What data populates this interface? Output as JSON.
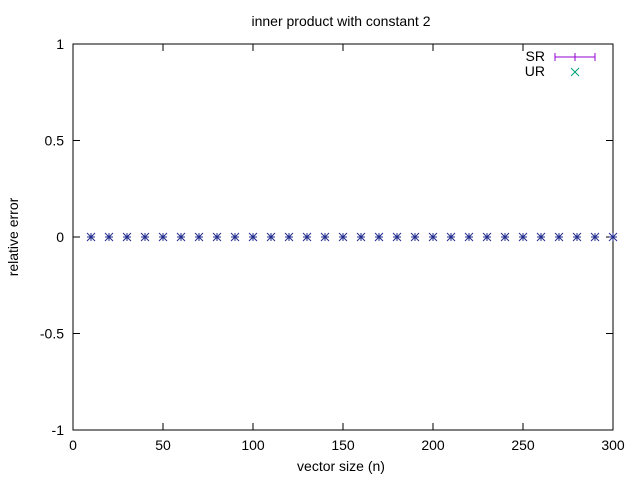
{
  "chart_data": {
    "type": "scatter",
    "title": "inner product with constant 2",
    "xlabel": "vector size (n)",
    "ylabel": "relative error",
    "xlim": [
      0,
      300
    ],
    "ylim": [
      -1,
      1
    ],
    "xticks": [
      0,
      50,
      100,
      150,
      200,
      250,
      300
    ],
    "yticks": [
      -1,
      -0.5,
      0,
      0.5,
      1
    ],
    "xtick_labels": [
      "0",
      "50",
      "100",
      "150",
      "200",
      "250",
      "300"
    ],
    "ytick_labels": [
      "-1",
      "-0.5",
      "0",
      "0.5",
      "1"
    ],
    "grid": false,
    "legend_position": "top-right",
    "series": [
      {
        "name": "SR",
        "marker": "errorbar-plus",
        "color": "#9400d3",
        "x": [
          10,
          20,
          30,
          40,
          50,
          60,
          70,
          80,
          90,
          100,
          110,
          120,
          130,
          140,
          150,
          160,
          170,
          180,
          190,
          200,
          210,
          220,
          230,
          240,
          250,
          260,
          270,
          280,
          290,
          300
        ],
        "y": [
          0,
          0,
          0,
          0,
          0,
          0,
          0,
          0,
          0,
          0,
          0,
          0,
          0,
          0,
          0,
          0,
          0,
          0,
          0,
          0,
          0,
          0,
          0,
          0,
          0,
          0,
          0,
          0,
          0,
          0
        ]
      },
      {
        "name": "UR",
        "marker": "cross",
        "color": "#009e73",
        "x": [
          10,
          20,
          30,
          40,
          50,
          60,
          70,
          80,
          90,
          100,
          110,
          120,
          130,
          140,
          150,
          160,
          170,
          180,
          190,
          200,
          210,
          220,
          230,
          240,
          250,
          260,
          270,
          280,
          290,
          300
        ],
        "y": [
          0,
          0,
          0,
          0,
          0,
          0,
          0,
          0,
          0,
          0,
          0,
          0,
          0,
          0,
          0,
          0,
          0,
          0,
          0,
          0,
          0,
          0,
          0,
          0,
          0,
          0,
          0,
          0,
          0,
          0
        ]
      }
    ],
    "overlap_color": "#1f2a8c"
  }
}
